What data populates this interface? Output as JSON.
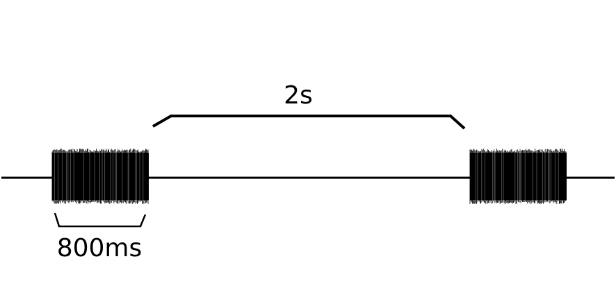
{
  "diagram": {
    "interval_label": "2s",
    "burst_label": "800ms",
    "ink_color": "#000000",
    "background_color": "#ffffff"
  }
}
